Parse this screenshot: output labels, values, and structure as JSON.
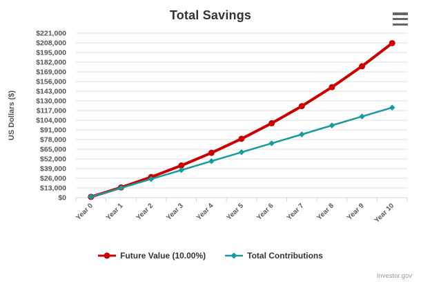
{
  "header": {
    "title": "Total Savings",
    "menu_icon": "hamburger-menu"
  },
  "chart_data": {
    "type": "line",
    "title": "Total Savings",
    "xlabel": "",
    "ylabel": "US Dollars ($)",
    "categories": [
      "Year 0",
      "Year 1",
      "Year 2",
      "Year 3",
      "Year 4",
      "Year 5",
      "Year 6",
      "Year 7",
      "Year 8",
      "Year 9",
      "Year 10"
    ],
    "y_tick_labels": [
      "$0",
      "$13,000",
      "$26,000",
      "$39,000",
      "$52,000",
      "$65,000",
      "$78,000",
      "$91,000",
      "$104,000",
      "$117,000",
      "$130,000",
      "$143,000",
      "$156,000",
      "$169,000",
      "$182,000",
      "$195,000",
      "$208,000",
      "$221,000"
    ],
    "y_tick_interval": 13000,
    "ylim": [
      0,
      221000
    ],
    "grid": true,
    "legend_position": "bottom",
    "series": [
      {
        "name": "Future Value (10.00%)",
        "color": "#cc0000",
        "marker": "circle",
        "values": [
          1000,
          13670,
          27667,
          43130,
          60212,
          79082,
          99929,
          122958,
          148401,
          176507,
          207552
        ]
      },
      {
        "name": "Total Contributions",
        "color": "#1a9b9b",
        "marker": "diamond",
        "values": [
          1000,
          13000,
          25000,
          37000,
          49000,
          61000,
          73000,
          85000,
          97000,
          109000,
          121000
        ]
      }
    ]
  },
  "credits": {
    "text": "Investor.gov"
  }
}
